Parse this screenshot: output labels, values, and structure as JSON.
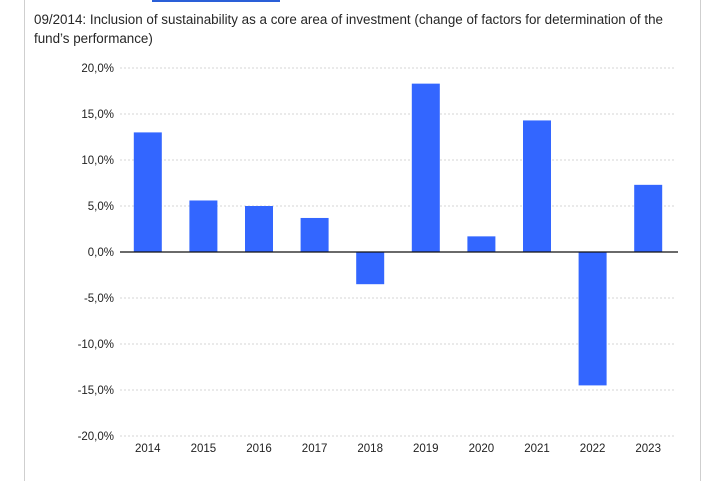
{
  "caption": "09/2014: Inclusion of sustainability as a core area of investment (change of factors for determination of the fund’s performance)",
  "chart_data": {
    "type": "bar",
    "title": "",
    "xlabel": "",
    "ylabel": "",
    "categories": [
      "2014",
      "2015",
      "2016",
      "2017",
      "2018",
      "2019",
      "2020",
      "2021",
      "2022",
      "2023"
    ],
    "values": [
      13.0,
      5.6,
      5.0,
      3.7,
      -3.5,
      18.3,
      1.7,
      14.3,
      -14.5,
      7.3
    ],
    "ylim": [
      -20,
      20
    ],
    "y_ticks": [
      20,
      15,
      10,
      5,
      0,
      -5,
      -10,
      -15,
      -20
    ],
    "y_tick_labels": [
      "20,0%",
      "15,0%",
      "10,0%",
      "5,0%",
      "0,0%",
      "-5,0%",
      "-10,0%",
      "-15,0%",
      "-20,0%"
    ],
    "grid": true,
    "legend": "none",
    "bar_color": "#3366ff"
  },
  "colors": {
    "accent": "#2a5fd8",
    "bar": "#3366ff"
  }
}
